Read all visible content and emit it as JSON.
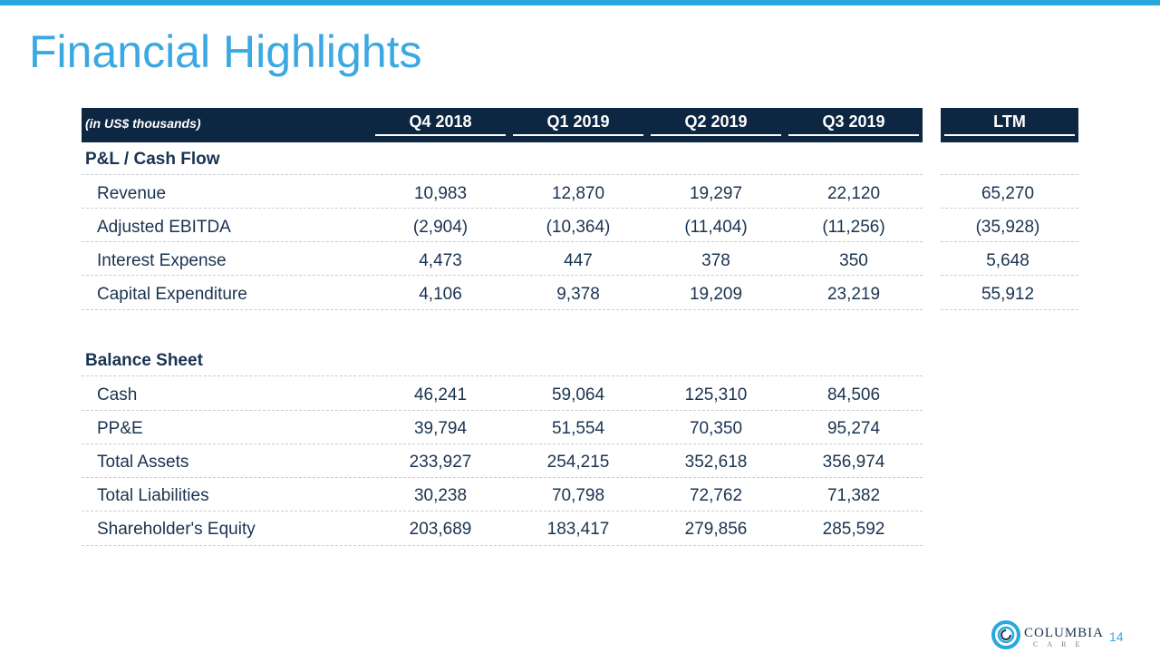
{
  "title": "Financial Highlights",
  "table": {
    "unit_note": "(in US$ thousands)",
    "columns": [
      "Q4 2018",
      "Q1 2019",
      "Q2 2019",
      "Q3 2019",
      "LTM"
    ],
    "sections": [
      {
        "name": "P&L / Cash Flow",
        "rows": [
          {
            "label": "Revenue",
            "values": [
              "10,983",
              "12,870",
              "19,297",
              "22,120",
              "65,270"
            ]
          },
          {
            "label": "Adjusted EBITDA",
            "values": [
              "(2,904)",
              "(10,364)",
              "(11,404)",
              "(11,256)",
              "(35,928)"
            ]
          },
          {
            "label": "Interest Expense",
            "values": [
              "4,473",
              "447",
              "378",
              "350",
              "5,648"
            ]
          },
          {
            "label": "Capital Expenditure",
            "values": [
              "4,106",
              "9,378",
              "19,209",
              "23,219",
              "55,912"
            ]
          }
        ]
      },
      {
        "name": "Balance Sheet",
        "rows": [
          {
            "label": "Cash",
            "values": [
              "46,241",
              "59,064",
              "125,310",
              "84,506"
            ]
          },
          {
            "label": "PP&E",
            "values": [
              "39,794",
              "51,554",
              "70,350",
              "95,274"
            ]
          },
          {
            "label": "Total Assets",
            "values": [
              "233,927",
              "254,215",
              "352,618",
              "356,974"
            ]
          },
          {
            "label": "Total Liabilities",
            "values": [
              "30,238",
              "70,798",
              "72,762",
              "71,382"
            ]
          },
          {
            "label": "Shareholder's Equity",
            "values": [
              "203,689",
              "183,417",
              "279,856",
              "285,592"
            ]
          }
        ]
      }
    ]
  },
  "footer": {
    "logo_name": "COLUMBIA",
    "logo_sub": "CARE",
    "logo_icon": "columbia-care-logo-icon",
    "page_number": "14"
  },
  "colors": {
    "accent": "#29a8e0",
    "header_band": "#0d2742",
    "text": "#1a3350"
  }
}
